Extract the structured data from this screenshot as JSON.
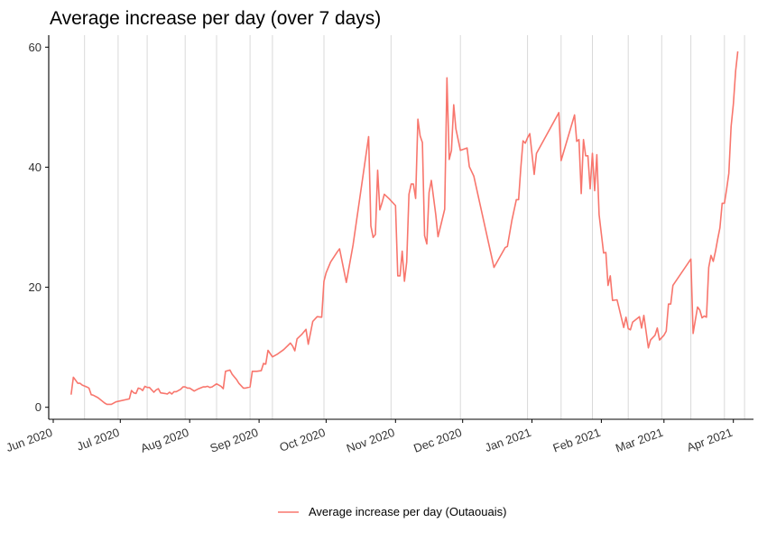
{
  "chart_data": {
    "type": "line",
    "title": "Average increase per day (over 7 days)",
    "xlabel": "",
    "ylabel": "",
    "x_range": [
      "2020-05-30",
      "2021-04-10"
    ],
    "ylim": [
      -2,
      62
    ],
    "y_ticks": [
      0,
      20,
      40,
      60
    ],
    "x_ticks": [
      {
        "date": "2020-06-01",
        "label": "Jun 2020"
      },
      {
        "date": "2020-07-01",
        "label": "Jul 2020"
      },
      {
        "date": "2020-08-01",
        "label": "Aug 2020"
      },
      {
        "date": "2020-09-01",
        "label": "Sep 2020"
      },
      {
        "date": "2020-10-01",
        "label": "Oct 2020"
      },
      {
        "date": "2020-11-01",
        "label": "Nov 2020"
      },
      {
        "date": "2020-12-01",
        "label": "Dec 2020"
      },
      {
        "date": "2021-01-01",
        "label": "Jan 2021"
      },
      {
        "date": "2021-02-01",
        "label": "Feb 2021"
      },
      {
        "date": "2021-03-01",
        "label": "Mar 2021"
      },
      {
        "date": "2021-04-01",
        "label": "Apr 2021"
      }
    ],
    "vertical_grid_dates": [
      "2020-06-15",
      "2020-06-30",
      "2020-07-13",
      "2020-07-30",
      "2020-08-13",
      "2020-08-28",
      "2020-09-07",
      "2020-09-30",
      "2020-10-30",
      "2020-11-30",
      "2020-12-30",
      "2021-01-14",
      "2021-01-28",
      "2021-02-13",
      "2021-02-28",
      "2021-03-13",
      "2021-03-28",
      "2021-04-06"
    ],
    "grid": "vertical lines only",
    "legend_position": "bottom",
    "series": [
      {
        "name": "Average increase per day (Outaouais)",
        "color": "#F8766D",
        "points": [
          [
            "2020-06-09",
            2.1
          ],
          [
            "2020-06-10",
            5.0
          ],
          [
            "2020-06-11",
            4.5
          ],
          [
            "2020-06-12",
            4.0
          ],
          [
            "2020-06-13",
            4.0
          ],
          [
            "2020-06-14",
            3.7
          ],
          [
            "2020-06-16",
            3.4
          ],
          [
            "2020-06-17",
            3.2
          ],
          [
            "2020-06-18",
            2.1
          ],
          [
            "2020-06-19",
            2.0
          ],
          [
            "2020-06-21",
            1.6
          ],
          [
            "2020-06-23",
            1.0
          ],
          [
            "2020-06-24",
            0.7
          ],
          [
            "2020-06-25",
            0.5
          ],
          [
            "2020-06-27",
            0.5
          ],
          [
            "2020-06-29",
            0.9
          ],
          [
            "2020-07-05",
            1.4
          ],
          [
            "2020-07-06",
            2.8
          ],
          [
            "2020-07-07",
            2.4
          ],
          [
            "2020-07-08",
            2.3
          ],
          [
            "2020-07-09",
            3.2
          ],
          [
            "2020-07-10",
            3.1
          ],
          [
            "2020-07-11",
            2.8
          ],
          [
            "2020-07-12",
            3.5
          ],
          [
            "2020-07-13",
            3.3
          ],
          [
            "2020-07-14",
            3.3
          ],
          [
            "2020-07-16",
            2.5
          ],
          [
            "2020-07-17",
            2.9
          ],
          [
            "2020-07-18",
            3.1
          ],
          [
            "2020-07-19",
            2.4
          ],
          [
            "2020-07-21",
            2.3
          ],
          [
            "2020-07-22",
            2.2
          ],
          [
            "2020-07-23",
            2.5
          ],
          [
            "2020-07-24",
            2.2
          ],
          [
            "2020-07-25",
            2.6
          ],
          [
            "2020-07-26",
            2.6
          ],
          [
            "2020-07-28",
            3.0
          ],
          [
            "2020-07-29",
            3.4
          ],
          [
            "2020-07-30",
            3.4
          ],
          [
            "2020-07-31",
            3.2
          ],
          [
            "2020-08-01",
            3.2
          ],
          [
            "2020-08-03",
            2.7
          ],
          [
            "2020-08-05",
            3.1
          ],
          [
            "2020-08-07",
            3.4
          ],
          [
            "2020-08-08",
            3.4
          ],
          [
            "2020-08-09",
            3.5
          ],
          [
            "2020-08-10",
            3.3
          ],
          [
            "2020-08-11",
            3.4
          ],
          [
            "2020-08-13",
            3.9
          ],
          [
            "2020-08-15",
            3.5
          ],
          [
            "2020-08-16",
            3.1
          ],
          [
            "2020-08-17",
            6.0
          ],
          [
            "2020-08-18",
            6.1
          ],
          [
            "2020-08-19",
            6.2
          ],
          [
            "2020-08-20",
            5.5
          ],
          [
            "2020-08-22",
            4.6
          ],
          [
            "2020-08-23",
            4.0
          ],
          [
            "2020-08-25",
            3.2
          ],
          [
            "2020-08-26",
            3.2
          ],
          [
            "2020-08-28",
            3.4
          ],
          [
            "2020-08-29",
            6.0
          ],
          [
            "2020-08-30",
            6.0
          ],
          [
            "2020-08-31",
            6.0
          ],
          [
            "2020-09-02",
            6.1
          ],
          [
            "2020-09-03",
            7.3
          ],
          [
            "2020-09-04",
            7.2
          ],
          [
            "2020-09-05",
            9.5
          ],
          [
            "2020-09-07",
            8.4
          ],
          [
            "2020-09-09",
            8.8
          ],
          [
            "2020-09-12",
            9.6
          ],
          [
            "2020-09-15",
            10.7
          ],
          [
            "2020-09-16",
            10.2
          ],
          [
            "2020-09-17",
            9.4
          ],
          [
            "2020-09-18",
            11.4
          ],
          [
            "2020-09-20",
            12.1
          ],
          [
            "2020-09-22",
            13.0
          ],
          [
            "2020-09-23",
            10.5
          ],
          [
            "2020-09-25",
            14.3
          ],
          [
            "2020-09-27",
            15.1
          ],
          [
            "2020-09-29",
            15.0
          ],
          [
            "2020-09-30",
            21.0
          ],
          [
            "2020-10-01",
            22.4
          ],
          [
            "2020-10-03",
            24.2
          ],
          [
            "2020-10-06",
            25.9
          ],
          [
            "2020-10-07",
            26.4
          ],
          [
            "2020-10-10",
            20.8
          ],
          [
            "2020-10-13",
            27.0
          ],
          [
            "2020-10-20",
            45.1
          ],
          [
            "2020-10-21",
            30.2
          ],
          [
            "2020-10-22",
            28.3
          ],
          [
            "2020-10-23",
            28.8
          ],
          [
            "2020-10-24",
            39.5
          ],
          [
            "2020-10-25",
            32.9
          ],
          [
            "2020-10-26",
            34.1
          ],
          [
            "2020-10-27",
            35.5
          ],
          [
            "2020-10-29",
            34.8
          ],
          [
            "2020-11-01",
            33.6
          ],
          [
            "2020-11-02",
            21.9
          ],
          [
            "2020-11-03",
            21.9
          ],
          [
            "2020-11-04",
            26.0
          ],
          [
            "2020-11-05",
            21.0
          ],
          [
            "2020-11-06",
            24.2
          ],
          [
            "2020-11-07",
            35.5
          ],
          [
            "2020-11-08",
            37.2
          ],
          [
            "2020-11-09",
            37.2
          ],
          [
            "2020-11-10",
            34.8
          ],
          [
            "2020-11-11",
            48.0
          ],
          [
            "2020-11-12",
            45.2
          ],
          [
            "2020-11-13",
            44.1
          ],
          [
            "2020-11-14",
            28.6
          ],
          [
            "2020-11-15",
            27.2
          ],
          [
            "2020-11-16",
            35.8
          ],
          [
            "2020-11-17",
            37.8
          ],
          [
            "2020-11-19",
            32.1
          ],
          [
            "2020-11-20",
            28.4
          ],
          [
            "2020-11-23",
            33.0
          ],
          [
            "2020-11-24",
            54.9
          ],
          [
            "2020-11-25",
            41.3
          ],
          [
            "2020-11-26",
            42.8
          ],
          [
            "2020-11-27",
            50.4
          ],
          [
            "2020-11-28",
            46.4
          ],
          [
            "2020-11-30",
            42.8
          ],
          [
            "2020-12-03",
            43.2
          ],
          [
            "2020-12-04",
            40.1
          ],
          [
            "2020-12-06",
            38.5
          ],
          [
            "2020-12-15",
            23.3
          ],
          [
            "2020-12-20",
            26.6
          ],
          [
            "2020-12-21",
            26.8
          ],
          [
            "2020-12-23",
            31.1
          ],
          [
            "2020-12-25",
            34.6
          ],
          [
            "2020-12-26",
            34.6
          ],
          [
            "2020-12-27",
            39.8
          ],
          [
            "2020-12-28",
            44.4
          ],
          [
            "2020-12-29",
            44.0
          ],
          [
            "2020-12-30",
            44.9
          ],
          [
            "2020-12-31",
            45.6
          ],
          [
            "2021-01-02",
            38.8
          ],
          [
            "2021-01-03",
            42.3
          ],
          [
            "2021-01-13",
            49.1
          ],
          [
            "2021-01-14",
            41.1
          ],
          [
            "2021-01-20",
            48.7
          ],
          [
            "2021-01-21",
            44.3
          ],
          [
            "2021-01-22",
            44.6
          ],
          [
            "2021-01-23",
            35.6
          ],
          [
            "2021-01-24",
            44.6
          ],
          [
            "2021-01-25",
            41.9
          ],
          [
            "2021-01-26",
            41.9
          ],
          [
            "2021-01-27",
            36.4
          ],
          [
            "2021-01-28",
            42.3
          ],
          [
            "2021-01-29",
            36.1
          ],
          [
            "2021-01-30",
            42.1
          ],
          [
            "2021-01-31",
            32.1
          ],
          [
            "2021-02-02",
            25.7
          ],
          [
            "2021-02-03",
            25.8
          ],
          [
            "2021-02-04",
            20.3
          ],
          [
            "2021-02-05",
            21.9
          ],
          [
            "2021-02-06",
            17.8
          ],
          [
            "2021-02-08",
            17.9
          ],
          [
            "2021-02-11",
            13.3
          ],
          [
            "2021-02-12",
            15.0
          ],
          [
            "2021-02-13",
            13.1
          ],
          [
            "2021-02-14",
            12.9
          ],
          [
            "2021-02-15",
            14.2
          ],
          [
            "2021-02-18",
            15.1
          ],
          [
            "2021-02-19",
            13.2
          ],
          [
            "2021-02-20",
            15.3
          ],
          [
            "2021-02-22",
            9.9
          ],
          [
            "2021-02-23",
            11.2
          ],
          [
            "2021-02-25",
            12.0
          ],
          [
            "2021-02-26",
            13.2
          ],
          [
            "2021-02-27",
            11.2
          ],
          [
            "2021-03-01",
            12.0
          ],
          [
            "2021-03-02",
            12.7
          ],
          [
            "2021-03-03",
            17.2
          ],
          [
            "2021-03-04",
            17.2
          ],
          [
            "2021-03-05",
            20.3
          ],
          [
            "2021-03-13",
            24.7
          ],
          [
            "2021-03-14",
            12.3
          ],
          [
            "2021-03-16",
            16.7
          ],
          [
            "2021-03-17",
            16.2
          ],
          [
            "2021-03-18",
            14.9
          ],
          [
            "2021-03-19",
            15.2
          ],
          [
            "2021-03-20",
            15.0
          ],
          [
            "2021-03-21",
            23.3
          ],
          [
            "2021-03-22",
            25.3
          ],
          [
            "2021-03-23",
            24.3
          ],
          [
            "2021-03-24",
            26.0
          ],
          [
            "2021-03-25",
            28.0
          ],
          [
            "2021-03-26",
            29.9
          ],
          [
            "2021-03-27",
            34.0
          ],
          [
            "2021-03-28",
            34.0
          ],
          [
            "2021-03-29",
            36.3
          ],
          [
            "2021-03-30",
            39.0
          ],
          [
            "2021-03-31",
            46.8
          ],
          [
            "2021-04-01",
            50.5
          ],
          [
            "2021-04-02",
            56.0
          ],
          [
            "2021-04-03",
            59.3
          ]
        ]
      }
    ]
  }
}
